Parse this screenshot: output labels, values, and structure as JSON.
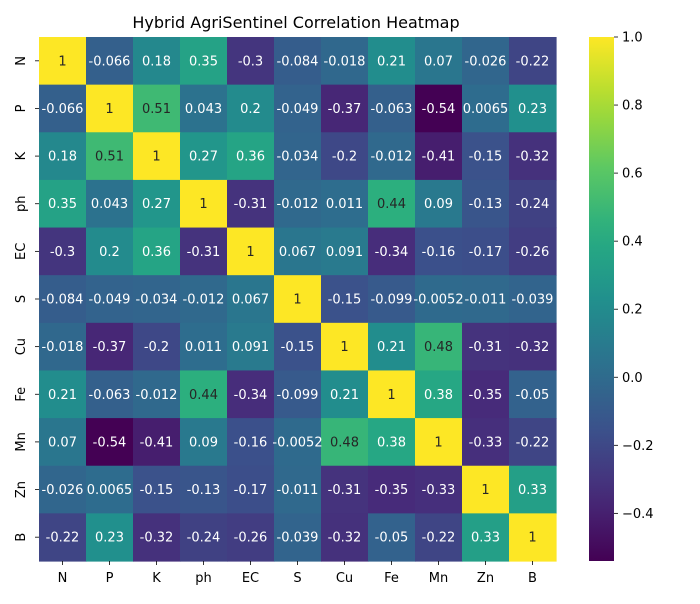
{
  "chart_data": {
    "type": "heatmap",
    "title": "Hybrid AgriSentinel Correlation Heatmap",
    "xlabel": "",
    "ylabel": "",
    "x_categories": [
      "N",
      "P",
      "K",
      "ph",
      "EC",
      "S",
      "Cu",
      "Fe",
      "Mn",
      "Zn",
      "B"
    ],
    "y_categories": [
      "N",
      "P",
      "K",
      "ph",
      "EC",
      "S",
      "Cu",
      "Fe",
      "Mn",
      "Zn",
      "B"
    ],
    "values": [
      [
        1,
        -0.066,
        0.18,
        0.35,
        -0.3,
        -0.084,
        -0.018,
        0.21,
        0.07,
        -0.026,
        -0.22
      ],
      [
        -0.066,
        1,
        0.51,
        0.043,
        0.2,
        -0.049,
        -0.37,
        -0.063,
        -0.54,
        0.0065,
        0.23
      ],
      [
        0.18,
        0.51,
        1,
        0.27,
        0.36,
        -0.034,
        -0.2,
        -0.012,
        -0.41,
        -0.15,
        -0.32
      ],
      [
        0.35,
        0.043,
        0.27,
        1,
        -0.31,
        -0.012,
        0.011,
        0.44,
        0.09,
        -0.13,
        -0.24
      ],
      [
        -0.3,
        0.2,
        0.36,
        -0.31,
        1,
        0.067,
        0.091,
        -0.34,
        -0.16,
        -0.17,
        -0.26
      ],
      [
        -0.084,
        -0.049,
        -0.034,
        -0.012,
        0.067,
        1,
        -0.15,
        -0.099,
        -0.0052,
        -0.011,
        -0.039
      ],
      [
        -0.018,
        -0.37,
        -0.2,
        0.011,
        0.091,
        -0.15,
        1,
        0.21,
        0.48,
        -0.31,
        -0.32
      ],
      [
        0.21,
        -0.063,
        -0.012,
        0.44,
        -0.34,
        -0.099,
        0.21,
        1,
        0.38,
        -0.35,
        -0.05
      ],
      [
        0.07,
        -0.54,
        -0.41,
        0.09,
        -0.16,
        -0.0052,
        0.48,
        0.38,
        1,
        -0.33,
        -0.22
      ],
      [
        -0.026,
        0.0065,
        -0.15,
        -0.13,
        -0.17,
        -0.011,
        -0.31,
        -0.35,
        -0.33,
        1,
        0.33
      ],
      [
        -0.22,
        0.23,
        -0.32,
        -0.24,
        -0.26,
        -0.039,
        -0.32,
        -0.05,
        -0.22,
        0.33,
        1
      ]
    ],
    "value_labels": [
      [
        "1",
        "-0.066",
        "0.18",
        "0.35",
        "-0.3",
        "-0.084",
        "-0.018",
        "0.21",
        "0.07",
        "-0.026",
        "-0.22"
      ],
      [
        "-0.066",
        "1",
        "0.51",
        "0.043",
        "0.2",
        "-0.049",
        "-0.37",
        "-0.063",
        "-0.54",
        "0.0065",
        "0.23"
      ],
      [
        "0.18",
        "0.51",
        "1",
        "0.27",
        "0.36",
        "-0.034",
        "-0.2",
        "-0.012",
        "-0.41",
        "-0.15",
        "-0.32"
      ],
      [
        "0.35",
        "0.043",
        "0.27",
        "1",
        "-0.31",
        "-0.012",
        "0.011",
        "0.44",
        "0.09",
        "-0.13",
        "-0.24"
      ],
      [
        "-0.3",
        "0.2",
        "0.36",
        "-0.31",
        "1",
        "0.067",
        "0.091",
        "-0.34",
        "-0.16",
        "-0.17",
        "-0.26"
      ],
      [
        "-0.084",
        "-0.049",
        "-0.034",
        "-0.012",
        "0.067",
        "1",
        "-0.15",
        "-0.099",
        "-0.0052",
        "-0.011",
        "-0.039"
      ],
      [
        "-0.018",
        "-0.37",
        "-0.2",
        "0.011",
        "0.091",
        "-0.15",
        "1",
        "0.21",
        "0.48",
        "-0.31",
        "-0.32"
      ],
      [
        "0.21",
        "-0.063",
        "-0.012",
        "0.44",
        "-0.34",
        "-0.099",
        "0.21",
        "1",
        "0.38",
        "-0.35",
        "-0.05"
      ],
      [
        "0.07",
        "-0.54",
        "-0.41",
        "0.09",
        "-0.16",
        "-0.0052",
        "0.48",
        "0.38",
        "1",
        "-0.33",
        "-0.22"
      ],
      [
        "-0.026",
        "0.0065",
        "-0.15",
        "-0.13",
        "-0.17",
        "-0.011",
        "-0.31",
        "-0.35",
        "-0.33",
        "1",
        "0.33"
      ],
      [
        "-0.22",
        "0.23",
        "-0.32",
        "-0.24",
        "-0.26",
        "-0.039",
        "-0.32",
        "-0.05",
        "-0.22",
        "0.33",
        "1"
      ]
    ],
    "colormap": "viridis",
    "vmin": -0.54,
    "vmax": 1.0,
    "colorbar_ticks": [
      1.0,
      0.8,
      0.6,
      0.4,
      0.2,
      0.0,
      -0.2,
      -0.4
    ],
    "colorbar_tick_labels": [
      "1.0",
      "0.8",
      "0.6",
      "0.4",
      "0.2",
      "0.0",
      "−0.2",
      "−0.4"
    ],
    "grid": false,
    "legend": "colorbar-right"
  }
}
